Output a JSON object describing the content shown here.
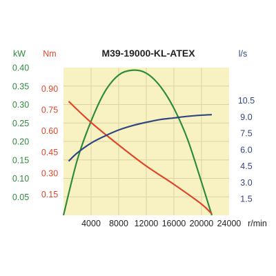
{
  "chart_data": {
    "type": "line",
    "title": "M39-19000-KL-ATEX",
    "xlabel": "r/min",
    "xlim": [
      0,
      24000
    ],
    "x_ticks": [
      "4000",
      "8000",
      "12000",
      "16000",
      "20000",
      "24000"
    ],
    "grid": true,
    "background_color": "#f8f2c2",
    "grid_color": "#d8d2a6",
    "axes": {
      "kw": {
        "label": "kW",
        "color": "#2e8b3e",
        "lim": [
          0,
          0.4
        ],
        "ticks": [
          "0.05",
          "0.10",
          "0.15",
          "0.20",
          "0.25",
          "0.30",
          "0.35",
          "0.40"
        ]
      },
      "nm": {
        "label": "Nm",
        "color": "#e0452a",
        "lim": [
          0,
          1.05
        ],
        "ticks": [
          "0.15",
          "0.30",
          "0.45",
          "0.60",
          "0.75",
          "0.90"
        ]
      },
      "ls": {
        "label": "l/s",
        "color": "#2f4680",
        "lim": [
          0,
          13.5
        ],
        "ticks": [
          "1.5",
          "3.0",
          "4.5",
          "6.0",
          "7.5",
          "9.0",
          "10.5"
        ]
      }
    },
    "series": [
      {
        "axis": "kw",
        "color": "#2e8b3e",
        "points": [
          [
            0,
            0
          ],
          [
            2000,
            0.15
          ],
          [
            4000,
            0.255
          ],
          [
            6000,
            0.335
          ],
          [
            8000,
            0.38
          ],
          [
            10000,
            0.393
          ],
          [
            12000,
            0.385
          ],
          [
            14000,
            0.35
          ],
          [
            16000,
            0.29
          ],
          [
            18000,
            0.205
          ],
          [
            20000,
            0.09
          ],
          [
            21500,
            0
          ]
        ]
      },
      {
        "axis": "nm",
        "color": "#e0452a",
        "points": [
          [
            750,
            0.81
          ],
          [
            4000,
            0.66
          ],
          [
            8000,
            0.5
          ],
          [
            12000,
            0.35
          ],
          [
            16000,
            0.22
          ],
          [
            20000,
            0.08
          ],
          [
            21500,
            0.01
          ]
        ]
      },
      {
        "axis": "ls",
        "color": "#2f4680",
        "points": [
          [
            750,
            4.95
          ],
          [
            2000,
            5.7
          ],
          [
            4000,
            6.6
          ],
          [
            6000,
            7.25
          ],
          [
            8000,
            7.8
          ],
          [
            10000,
            8.2
          ],
          [
            12000,
            8.5
          ],
          [
            14000,
            8.75
          ],
          [
            16000,
            8.9
          ],
          [
            18000,
            9.05
          ],
          [
            20000,
            9.15
          ],
          [
            21500,
            9.2
          ]
        ]
      }
    ]
  }
}
